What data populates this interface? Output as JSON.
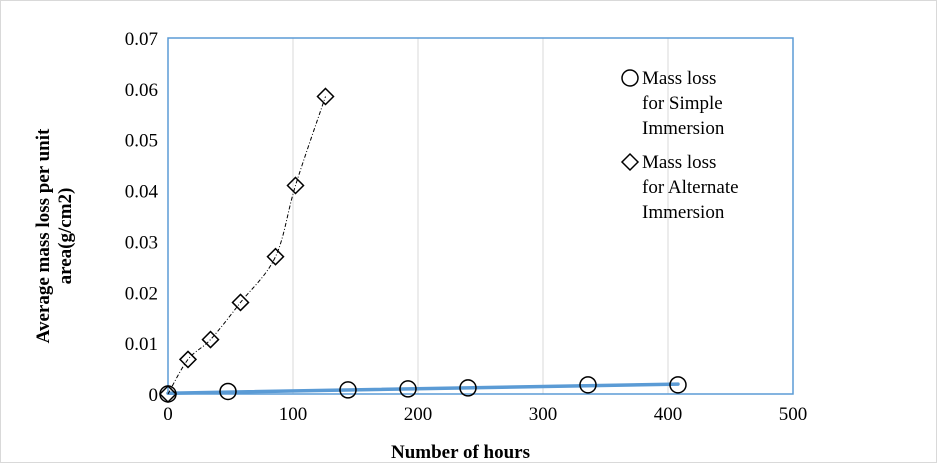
{
  "chart_data": {
    "type": "scatter",
    "title": "",
    "xlabel": "Number of hours",
    "ylabel_lines": [
      "Average mass loss per unit",
      "area(g/cm2)"
    ],
    "xlim": [
      0,
      500
    ],
    "ylim": [
      0,
      0.07
    ],
    "xticks": [
      "0",
      "100",
      "200",
      "300",
      "400",
      "500"
    ],
    "yticks": [
      "0",
      "0.01",
      "0.02",
      "0.03",
      "0.04",
      "0.05",
      "0.06",
      "0.07"
    ],
    "grid": "vertical",
    "legend_placement": "top-right",
    "series": [
      {
        "name_lines": [
          "Mass loss",
          "for Simple",
          "Immersion"
        ],
        "marker": "circle",
        "trendline": "linear",
        "trend_color": "#5b9bd5",
        "x": [
          0,
          48,
          144,
          192,
          240,
          336,
          408
        ],
        "y": [
          0.0,
          0.0005,
          0.0008,
          0.001,
          0.0012,
          0.0018,
          0.0018
        ]
      },
      {
        "name_lines": [
          "Mass loss",
          "for Alternate",
          "Immersion"
        ],
        "marker": "diamond",
        "trendline": "polynomial",
        "trend_color": "#000000",
        "x": [
          0,
          16,
          34,
          58,
          86,
          102,
          126
        ],
        "y": [
          0.0,
          0.0068,
          0.0107,
          0.018,
          0.027,
          0.041,
          0.0585
        ]
      }
    ]
  }
}
